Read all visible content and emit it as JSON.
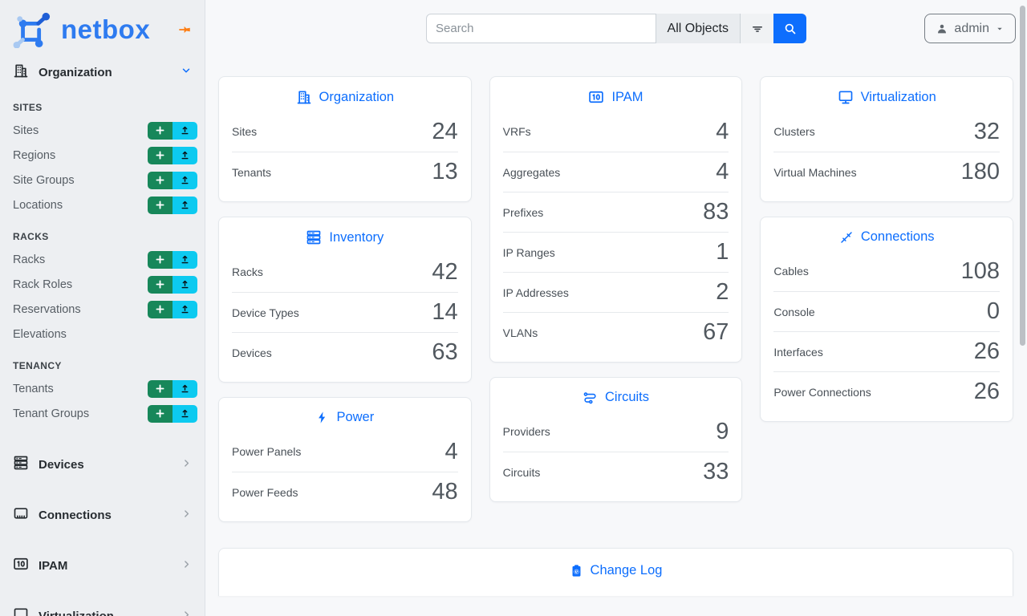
{
  "brand": {
    "name": "netbox"
  },
  "search": {
    "placeholder": "Search",
    "scope": "All Objects"
  },
  "user_menu": {
    "label": "admin"
  },
  "sidebar": {
    "sections": [
      {
        "type": "expanded",
        "label": "Organization",
        "icon": "building-icon",
        "subsections": [
          {
            "heading": "SITES",
            "items": [
              {
                "label": "Sites",
                "add": true,
                "import": true
              },
              {
                "label": "Regions",
                "add": true,
                "import": true
              },
              {
                "label": "Site Groups",
                "add": true,
                "import": true
              },
              {
                "label": "Locations",
                "add": true,
                "import": true
              }
            ]
          },
          {
            "heading": "RACKS",
            "items": [
              {
                "label": "Racks",
                "add": true,
                "import": true
              },
              {
                "label": "Rack Roles",
                "add": true,
                "import": true
              },
              {
                "label": "Reservations",
                "add": true,
                "import": true
              },
              {
                "label": "Elevations",
                "add": false,
                "import": false
              }
            ]
          },
          {
            "heading": "TENANCY",
            "items": [
              {
                "label": "Tenants",
                "add": true,
                "import": true
              },
              {
                "label": "Tenant Groups",
                "add": true,
                "import": true
              }
            ]
          }
        ]
      },
      {
        "type": "collapsed",
        "label": "Devices",
        "icon": "server-stack-icon"
      },
      {
        "type": "collapsed",
        "label": "Connections",
        "icon": "ethernet-port-icon"
      },
      {
        "type": "collapsed",
        "label": "IPAM",
        "icon": "binary-icon"
      },
      {
        "type": "collapsed",
        "label": "Virtualization",
        "icon": "monitor-icon"
      }
    ]
  },
  "cards": {
    "organization": {
      "title": "Organization",
      "icon": "building-icon",
      "rows": [
        {
          "label": "Sites",
          "value": "24"
        },
        {
          "label": "Tenants",
          "value": "13"
        }
      ]
    },
    "inventory": {
      "title": "Inventory",
      "icon": "server-stack-icon",
      "rows": [
        {
          "label": "Racks",
          "value": "42"
        },
        {
          "label": "Device Types",
          "value": "14"
        },
        {
          "label": "Devices",
          "value": "63"
        }
      ]
    },
    "power": {
      "title": "Power",
      "icon": "bolt-icon",
      "rows": [
        {
          "label": "Power Panels",
          "value": "4"
        },
        {
          "label": "Power Feeds",
          "value": "48"
        }
      ]
    },
    "ipam": {
      "title": "IPAM",
      "icon": "binary-icon",
      "rows": [
        {
          "label": "VRFs",
          "value": "4"
        },
        {
          "label": "Aggregates",
          "value": "4"
        },
        {
          "label": "Prefixes",
          "value": "83"
        },
        {
          "label": "IP Ranges",
          "value": "1"
        },
        {
          "label": "IP Addresses",
          "value": "2"
        },
        {
          "label": "VLANs",
          "value": "67"
        }
      ]
    },
    "circuits": {
      "title": "Circuits",
      "icon": "route-icon",
      "rows": [
        {
          "label": "Providers",
          "value": "9"
        },
        {
          "label": "Circuits",
          "value": "33"
        }
      ]
    },
    "virtualization": {
      "title": "Virtualization",
      "icon": "monitor-icon",
      "rows": [
        {
          "label": "Clusters",
          "value": "32"
        },
        {
          "label": "Virtual Machines",
          "value": "180"
        }
      ]
    },
    "connections": {
      "title": "Connections",
      "icon": "cable-icon",
      "rows": [
        {
          "label": "Cables",
          "value": "108"
        },
        {
          "label": "Console",
          "value": "0"
        },
        {
          "label": "Interfaces",
          "value": "26"
        },
        {
          "label": "Power Connections",
          "value": "26"
        }
      ]
    }
  },
  "columns": [
    [
      "organization",
      "inventory",
      "power"
    ],
    [
      "ipam",
      "circuits"
    ],
    [
      "virtualization",
      "connections"
    ]
  ],
  "changelog": {
    "title": "Change Log",
    "icon": "clipboard-clock-icon"
  },
  "colors": {
    "accent_blue": "#0d6efd",
    "brand_blue": "#2e7bf0",
    "add_green": "#17875a",
    "import_cyan": "#0dcaf0",
    "pin_orange": "#fd7e14"
  }
}
